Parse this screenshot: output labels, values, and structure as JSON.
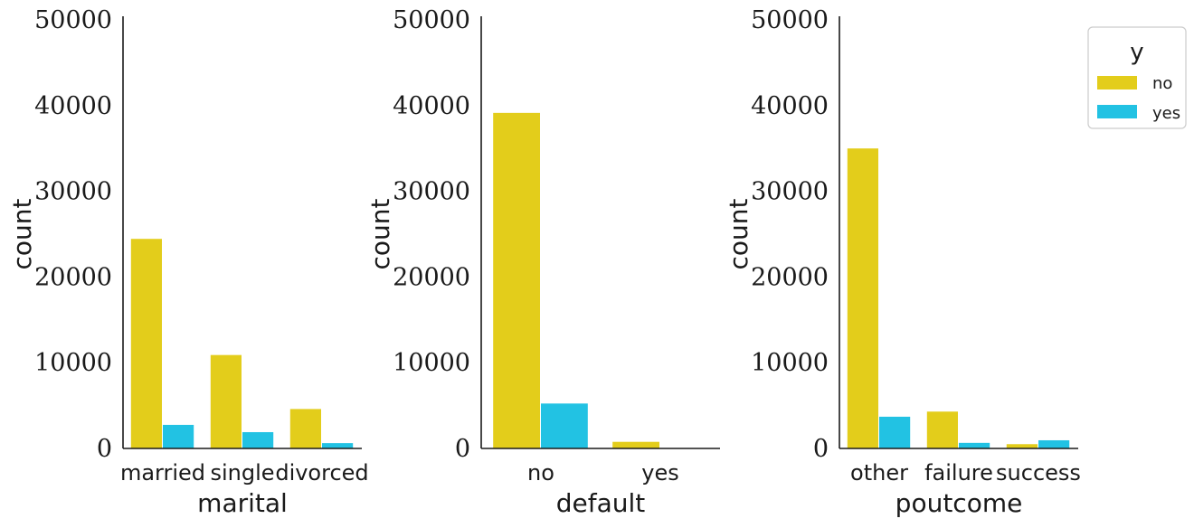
{
  "legend": {
    "title": "y",
    "entries": [
      {
        "label": "no",
        "color": "#e3cd1b"
      },
      {
        "label": "yes",
        "color": "#22c2e3"
      }
    ]
  },
  "chart_data": [
    {
      "type": "bar",
      "xlabel": "marital",
      "ylabel": "count",
      "ylim": [
        0,
        50000
      ],
      "yticks": [
        "0",
        "10000",
        "20000",
        "30000",
        "40000",
        "50000"
      ],
      "categories": [
        "married",
        "single",
        "divorced"
      ],
      "series": [
        {
          "name": "no",
          "values": [
            24450,
            10900,
            4600
          ]
        },
        {
          "name": "yes",
          "values": [
            2750,
            1900,
            620
          ]
        }
      ]
    },
    {
      "type": "bar",
      "xlabel": "default",
      "ylabel": "count",
      "ylim": [
        0,
        50000
      ],
      "yticks": [
        "0",
        "10000",
        "20000",
        "30000",
        "40000",
        "50000"
      ],
      "categories": [
        "no",
        "yes"
      ],
      "series": [
        {
          "name": "no",
          "values": [
            39150,
            770
          ]
        },
        {
          "name": "yes",
          "values": [
            5240,
            50
          ]
        }
      ]
    },
    {
      "type": "bar",
      "xlabel": "poutcome",
      "ylabel": "count",
      "ylim": [
        0,
        50000
      ],
      "yticks": [
        "0",
        "10000",
        "20000",
        "30000",
        "40000",
        "50000"
      ],
      "categories": [
        "other",
        "failure",
        "success"
      ],
      "series": [
        {
          "name": "no",
          "values": [
            35000,
            4300,
            500
          ]
        },
        {
          "name": "yes",
          "values": [
            3700,
            650,
            950
          ]
        }
      ]
    }
  ]
}
